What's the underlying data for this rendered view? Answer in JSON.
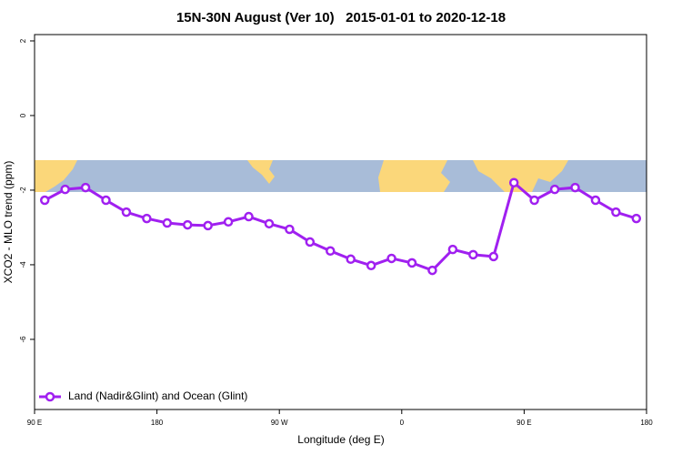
{
  "chart_data": {
    "type": "line",
    "title": "15N-30N August (Ver 10)   2015-01-01 to 2020-12-18",
    "x_label": "Longitude (deg E)",
    "y_label": "XCO2 - MLO trend (ppm)",
    "x": [
      97.5,
      112.5,
      127.5,
      142.5,
      157.5,
      172.5,
      187.5,
      202.5,
      217.5,
      232.5,
      247.5,
      262.5,
      277.5,
      292.5,
      307.5,
      322.5,
      337.5,
      352.5,
      367.5,
      382.5,
      397.5,
      412.5,
      427.5,
      442.5,
      457.5,
      472.5,
      487.5,
      502.5,
      517.5,
      532.5
    ],
    "series": [
      {
        "name": "Land (Nadir&Glint) and Ocean (Glint)",
        "color": "#a020f0",
        "values": [
          -2.27,
          -1.98,
          -1.93,
          -2.27,
          -2.59,
          -2.76,
          -2.88,
          -2.93,
          -2.95,
          -2.85,
          -2.71,
          -2.9,
          -3.05,
          -3.39,
          -3.63,
          -3.85,
          -4.02,
          -3.83,
          -3.95,
          -4.15,
          -3.59,
          -3.73,
          -3.78,
          -1.8,
          -2.27,
          -1.98,
          -1.93,
          -2.27,
          -2.59,
          -2.76
        ]
      }
    ],
    "xlim": [
      90,
      540
    ],
    "xticks": [
      {
        "value": 90,
        "label": "90 E"
      },
      {
        "value": 180,
        "label": "180"
      },
      {
        "value": 270,
        "label": "90 W"
      },
      {
        "value": 360,
        "label": "0"
      },
      {
        "value": 450,
        "label": "90 E"
      },
      {
        "value": 540,
        "label": "180"
      }
    ],
    "ylim": [
      -7.88,
      2.17
    ],
    "yticks": [
      2,
      0,
      -2,
      -4,
      -6
    ],
    "legend": "bottom-left"
  }
}
